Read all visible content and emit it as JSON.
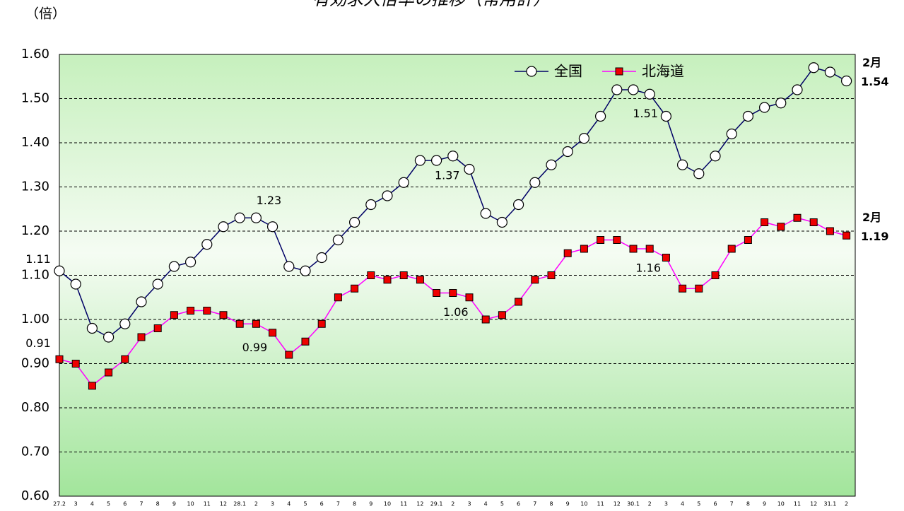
{
  "chart_data": {
    "type": "line",
    "title": "有効求人倍率の推移（常用計）",
    "y_label": "（倍）",
    "categories": [
      "27.2",
      "3",
      "4",
      "5",
      "6",
      "7",
      "8",
      "9",
      "10",
      "11",
      "12",
      "28.1",
      "2",
      "3",
      "4",
      "5",
      "6",
      "7",
      "8",
      "9",
      "10",
      "11",
      "12",
      "29.1",
      "2",
      "3",
      "4",
      "5",
      "6",
      "7",
      "8",
      "9",
      "10",
      "11",
      "12",
      "30.1",
      "2",
      "3",
      "4",
      "5",
      "6",
      "7",
      "8",
      "9",
      "10",
      "11",
      "12",
      "31.1",
      "2"
    ],
    "series": [
      {
        "name": "全国",
        "color": "#000066",
        "marker": "circle",
        "end_label": "2月",
        "values": [
          1.11,
          1.08,
          0.98,
          0.96,
          0.99,
          1.04,
          1.08,
          1.12,
          1.13,
          1.17,
          1.21,
          1.23,
          1.23,
          1.21,
          1.12,
          1.11,
          1.14,
          1.18,
          1.22,
          1.26,
          1.28,
          1.31,
          1.36,
          1.36,
          1.37,
          1.34,
          1.24,
          1.22,
          1.26,
          1.31,
          1.35,
          1.38,
          1.41,
          1.46,
          1.52,
          1.52,
          1.51,
          1.46,
          1.35,
          1.33,
          1.37,
          1.42,
          1.46,
          1.48,
          1.49,
          1.52,
          1.57,
          1.56,
          1.54
        ],
        "value_labels": [
          "1.11",
          null,
          null,
          null,
          null,
          null,
          null,
          null,
          null,
          null,
          null,
          null,
          "1.23",
          null,
          null,
          null,
          null,
          null,
          null,
          null,
          null,
          null,
          null,
          null,
          "1.37",
          null,
          null,
          null,
          null,
          null,
          null,
          null,
          null,
          null,
          null,
          null,
          "1.51",
          null,
          null,
          null,
          null,
          null,
          null,
          null,
          null,
          null,
          null,
          null,
          "1.54"
        ]
      },
      {
        "name": "北海道",
        "color": "#ff00ff",
        "marker": "square",
        "end_label": "2月",
        "values": [
          0.91,
          0.9,
          0.85,
          0.88,
          0.91,
          0.96,
          0.98,
          1.01,
          1.02,
          1.02,
          1.01,
          0.99,
          0.99,
          0.97,
          0.92,
          0.95,
          0.99,
          1.05,
          1.07,
          1.1,
          1.09,
          1.1,
          1.09,
          1.06,
          1.06,
          1.05,
          1.0,
          1.01,
          1.04,
          1.09,
          1.1,
          1.15,
          1.16,
          1.18,
          1.18,
          1.16,
          1.16,
          1.14,
          1.07,
          1.07,
          1.1,
          1.16,
          1.18,
          1.22,
          1.21,
          1.23,
          1.22,
          1.2,
          1.19
        ],
        "value_labels": [
          "0.91",
          null,
          null,
          null,
          null,
          null,
          null,
          null,
          null,
          null,
          null,
          null,
          "0.99",
          null,
          null,
          null,
          null,
          null,
          null,
          null,
          null,
          null,
          null,
          null,
          "1.06",
          null,
          null,
          null,
          null,
          null,
          null,
          null,
          null,
          null,
          null,
          null,
          "1.16",
          null,
          null,
          null,
          null,
          null,
          null,
          null,
          null,
          null,
          null,
          null,
          "1.19"
        ]
      }
    ],
    "ylim": [
      0.6,
      1.6
    ],
    "yticks": [
      {
        "value": 0.6,
        "label": "0.60"
      },
      {
        "value": 0.7,
        "label": "0.70"
      },
      {
        "value": 0.8,
        "label": "0.80"
      },
      {
        "value": 0.9,
        "label": "0.90"
      },
      {
        "value": 1.0,
        "label": "1.00"
      },
      {
        "value": 1.1,
        "label": "1.10"
      },
      {
        "value": 1.2,
        "label": "1.20"
      },
      {
        "value": 1.3,
        "label": "1.30"
      },
      {
        "value": 1.4,
        "label": "1.40"
      },
      {
        "value": 1.5,
        "label": "1.50"
      },
      {
        "value": 1.6,
        "label": "1.60"
      }
    ],
    "grid": true,
    "legend": "top-right"
  }
}
